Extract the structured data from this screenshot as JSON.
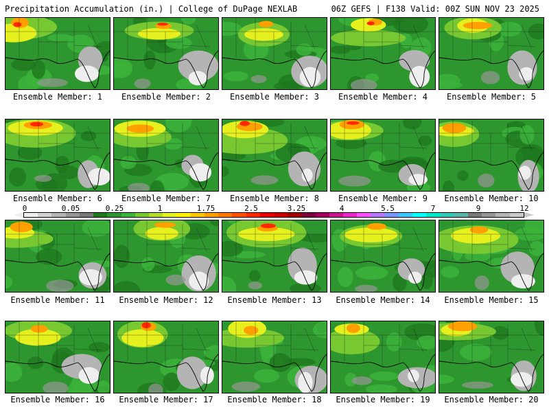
{
  "header": {
    "title_left": "Precipitation Accumulation (in.) | College of DuPage NEXLAB",
    "title_right": "06Z GEFS | F138 Valid: 00Z SUN NOV 23 2025"
  },
  "panels": [
    {
      "label": "Ensemble Member: 1"
    },
    {
      "label": "Ensemble Member: 2"
    },
    {
      "label": "Ensemble Member: 3"
    },
    {
      "label": "Ensemble Member: 4"
    },
    {
      "label": "Ensemble Member: 5"
    },
    {
      "label": "Ensemble Member: 6"
    },
    {
      "label": "Ensemble Member: 7"
    },
    {
      "label": "Ensemble Member: 8"
    },
    {
      "label": "Ensemble Member: 9"
    },
    {
      "label": "Ensemble Member: 10"
    },
    {
      "label": "Ensemble Member: 11"
    },
    {
      "label": "Ensemble Member: 12"
    },
    {
      "label": "Ensemble Member: 13"
    },
    {
      "label": "Ensemble Member: 14"
    },
    {
      "label": "Ensemble Member: 15"
    },
    {
      "label": "Ensemble Member: 16"
    },
    {
      "label": "Ensemble Member: 17"
    },
    {
      "label": "Ensemble Member: 18"
    },
    {
      "label": "Ensemble Member: 19"
    },
    {
      "label": "Ensemble Member: 20"
    }
  ],
  "colorbar": {
    "ticks": [
      "0",
      "0.05",
      "0.25",
      "1",
      "1.75",
      "2.5",
      "3.25",
      "4",
      "5.5",
      "7",
      "9",
      "12"
    ],
    "colors": [
      "#eeeeee",
      "#d2d2d2",
      "#b4b4b4",
      "#969696",
      "#787878",
      "#1e781e",
      "#2e962e",
      "#3cb43c",
      "#78c832",
      "#b4dc28",
      "#e6f01e",
      "#fff000",
      "#ffc800",
      "#ffa000",
      "#ff7800",
      "#ff5000",
      "#ff2800",
      "#e60000",
      "#c80000",
      "#a00000",
      "#78003c",
      "#a0005a",
      "#c8148c",
      "#e628c8",
      "#ff50ff",
      "#b478ff",
      "#7896ff",
      "#3cc8ff",
      "#00ffff",
      "#00e6c8",
      "#32c8b4",
      "#5ab4aa",
      "#787878",
      "#969696",
      "#b4b4b4",
      "#c8c8c8"
    ]
  }
}
